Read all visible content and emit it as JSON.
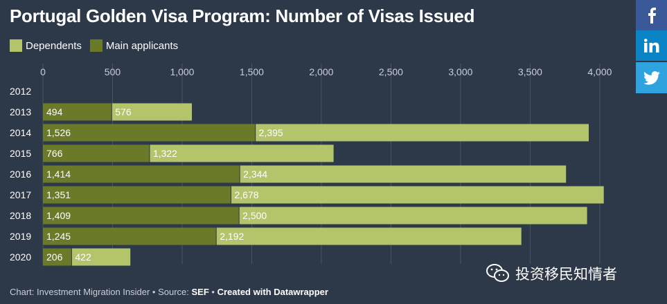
{
  "colors": {
    "background": "#2d3848",
    "dependents": "#b3c46a",
    "main_applicants": "#6b7a29",
    "gridline": "#4a5566",
    "facebook": "#3b5998",
    "linkedin": "#0a84c4",
    "twitter": "#2fa3df"
  },
  "share": {
    "facebook_icon": "facebook-icon",
    "linkedin_icon": "linkedin-icon",
    "twitter_icon": "twitter-icon"
  },
  "footer": {
    "prefix": "Chart: Investment Migration Insider • Source: ",
    "source": "SEF",
    "sep": " • ",
    "credit": "Created with Datawrapper"
  },
  "watermark": {
    "text": "投资移民知情者",
    "icon": "wechat-icon"
  },
  "chart_data": {
    "type": "bar",
    "orientation": "horizontal",
    "stacked": true,
    "title": "Portugal Golden Visa Program: Number of Visas Issued",
    "categories": [
      "2012",
      "2013",
      "2014",
      "2015",
      "2016",
      "2017",
      "2018",
      "2019",
      "2020"
    ],
    "series": [
      {
        "name": "Main applicants",
        "values": [
          null,
          494,
          1526,
          766,
          1414,
          1351,
          1409,
          1245,
          206
        ],
        "labels": [
          "",
          "494",
          "1,526",
          "766",
          "1,414",
          "1,351",
          "1,409",
          "1,245",
          "206"
        ]
      },
      {
        "name": "Dependents",
        "values": [
          null,
          576,
          2395,
          1322,
          2344,
          2678,
          2500,
          2192,
          422
        ],
        "labels": [
          "",
          "576",
          "2,395",
          "1,322",
          "2,344",
          "2,678",
          "2,500",
          "2,192",
          "422"
        ]
      }
    ],
    "legend": [
      "Dependents",
      "Main applicants"
    ],
    "xlim": [
      0,
      4000
    ],
    "ticks": [
      0,
      500,
      1000,
      1500,
      2000,
      2500,
      3000,
      3500,
      4000
    ],
    "tick_labels": [
      "0",
      "500",
      "1,000",
      "1,500",
      "2,000",
      "2,500",
      "3,000",
      "3,500",
      "4,000"
    ],
    "grid": true,
    "legend_position": "top-left"
  }
}
